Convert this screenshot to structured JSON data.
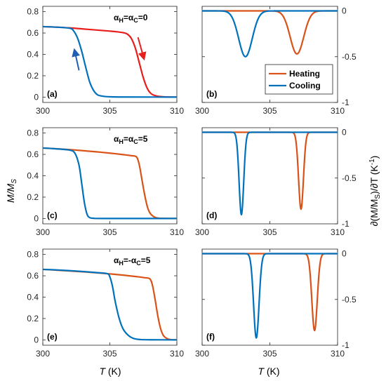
{
  "figure": {
    "ylabel_left": "M/M",
    "ylabel_left_sub": "S",
    "ylabel_right": "∂(M/M",
    "ylabel_right_sub": "S",
    "ylabel_right_tail": ")/∂T (K",
    "ylabel_right_sup": "-1",
    "ylabel_right_close": ")",
    "xlabel": "T",
    "xlabel_unit": " (K)"
  },
  "colors": {
    "heating": "#d95319",
    "heating_a": "#e81e1e",
    "cooling": "#0072bd",
    "arrow_heat": "#e81e1e",
    "arrow_cool": "#1f5fb3"
  },
  "chart_data": [
    {
      "id": "a",
      "type": "line",
      "panel_label": "(a)",
      "annotation": {
        "alpha": "α",
        "h": "H",
        "eq": "=α",
        "c": "C",
        "val": "=0"
      },
      "xlim": [
        300,
        310
      ],
      "ylim": [
        -0.05,
        0.85
      ],
      "xticks": [
        "300",
        "305",
        "310"
      ],
      "yticks": [
        "0",
        "0.2",
        "0.4",
        "0.6",
        "0.8"
      ],
      "series": [
        {
          "key": "heating",
          "x": [
            300,
            301,
            302,
            303,
            304,
            305,
            305.5,
            306,
            306.3,
            306.6,
            306.9,
            307.2,
            307.5,
            307.8,
            308.1,
            308.5,
            309,
            310
          ],
          "y": [
            0.66,
            0.655,
            0.648,
            0.638,
            0.628,
            0.618,
            0.612,
            0.603,
            0.59,
            0.55,
            0.46,
            0.32,
            0.18,
            0.08,
            0.03,
            0.01,
            0.003,
            0.0
          ]
        },
        {
          "key": "cooling",
          "x": [
            300,
            301,
            302,
            302.3,
            302.6,
            302.9,
            303.2,
            303.5,
            303.8,
            304.1,
            304.5,
            305,
            306,
            310
          ],
          "y": [
            0.66,
            0.655,
            0.645,
            0.62,
            0.55,
            0.43,
            0.28,
            0.14,
            0.06,
            0.02,
            0.008,
            0.003,
            0.001,
            0.0
          ]
        }
      ]
    },
    {
      "id": "b",
      "type": "line",
      "panel_label": "(b)",
      "legend": {
        "heating": "Heating",
        "cooling": "Cooling"
      },
      "xlim": [
        300,
        310
      ],
      "ylim": [
        -1,
        0.05
      ],
      "xticks": [
        "300",
        "305",
        "310"
      ],
      "yticks": [
        "0",
        "-0.5",
        "-1"
      ],
      "series": [
        {
          "key": "heating",
          "mu": 307.0,
          "sigma": 0.5,
          "amp": 0.47
        },
        {
          "key": "cooling",
          "mu": 303.2,
          "sigma": 0.5,
          "amp": 0.5
        }
      ]
    },
    {
      "id": "c",
      "type": "line",
      "panel_label": "(c)",
      "annotation": {
        "alpha": "α",
        "h": "H",
        "eq": "=α",
        "c": "C",
        "val": "=5"
      },
      "xlim": [
        300,
        310
      ],
      "ylim": [
        -0.05,
        0.85
      ],
      "xticks": [
        "300",
        "305",
        "310"
      ],
      "yticks": [
        "0",
        "0.2",
        "0.4",
        "0.6",
        "0.8"
      ],
      "series": [
        {
          "key": "heating",
          "x": [
            300,
            301,
            302,
            303,
            304,
            305,
            306,
            306.6,
            307.0,
            307.2,
            307.4,
            307.6,
            307.8,
            308.0,
            308.3,
            308.6,
            309,
            310
          ],
          "y": [
            0.66,
            0.653,
            0.645,
            0.635,
            0.624,
            0.612,
            0.598,
            0.588,
            0.575,
            0.5,
            0.36,
            0.22,
            0.11,
            0.05,
            0.015,
            0.004,
            0.001,
            0.0
          ]
        },
        {
          "key": "cooling",
          "x": [
            300,
            301,
            302,
            302.4,
            302.7,
            302.9,
            303.1,
            303.3,
            303.5,
            303.8,
            304.5,
            310
          ],
          "y": [
            0.66,
            0.652,
            0.64,
            0.61,
            0.5,
            0.33,
            0.15,
            0.04,
            0.008,
            0.002,
            0.0,
            0.0
          ]
        }
      ]
    },
    {
      "id": "d",
      "type": "line",
      "panel_label": "(d)",
      "xlim": [
        300,
        310
      ],
      "ylim": [
        -1,
        0.05
      ],
      "xticks": [
        "300",
        "305",
        "310"
      ],
      "yticks": [
        "0",
        "-0.5",
        "-1"
      ],
      "series": [
        {
          "key": "heating",
          "mu": 307.3,
          "sigma": 0.18,
          "amp": 0.84
        },
        {
          "key": "cooling",
          "mu": 302.9,
          "sigma": 0.17,
          "amp": 0.9
        }
      ]
    },
    {
      "id": "e",
      "type": "line",
      "panel_label": "(e)",
      "annotation": {
        "alpha": "α",
        "h": "H",
        "eq": "=-α",
        "c": "C",
        "val": "=5"
      },
      "xlim": [
        300,
        310
      ],
      "ylim": [
        -0.05,
        0.85
      ],
      "xticks": [
        "300",
        "305",
        "310"
      ],
      "yticks": [
        "0",
        "0.2",
        "0.4",
        "0.6",
        "0.8"
      ],
      "series": [
        {
          "key": "heating",
          "x": [
            300,
            301,
            302,
            303,
            304,
            305,
            306,
            307,
            307.6,
            308.0,
            308.2,
            308.4,
            308.6,
            308.8,
            309.0,
            309.3,
            309.6,
            310
          ],
          "y": [
            0.66,
            0.653,
            0.645,
            0.637,
            0.628,
            0.618,
            0.606,
            0.592,
            0.582,
            0.57,
            0.5,
            0.36,
            0.21,
            0.1,
            0.04,
            0.01,
            0.002,
            0.0
          ]
        },
        {
          "key": "cooling",
          "x": [
            300,
            301,
            302,
            303,
            304,
            304.8,
            305.0,
            305.2,
            305.4,
            305.7,
            306.0,
            306.4,
            306.8,
            307.3,
            308,
            310
          ],
          "y": [
            0.66,
            0.655,
            0.648,
            0.64,
            0.63,
            0.62,
            0.59,
            0.5,
            0.36,
            0.2,
            0.1,
            0.04,
            0.012,
            0.003,
            0.001,
            0.0
          ]
        }
      ]
    },
    {
      "id": "f",
      "type": "line",
      "panel_label": "(f)",
      "xlim": [
        300,
        310
      ],
      "ylim": [
        -1,
        0.05
      ],
      "xticks": [
        "300",
        "305",
        "310"
      ],
      "yticks": [
        "0",
        "-0.5",
        "-1"
      ],
      "series": [
        {
          "key": "heating",
          "mu": 308.3,
          "sigma": 0.2,
          "amp": 0.84
        },
        {
          "key": "cooling",
          "mu": 304.0,
          "sigma": 0.2,
          "amp": 0.92
        }
      ]
    }
  ]
}
